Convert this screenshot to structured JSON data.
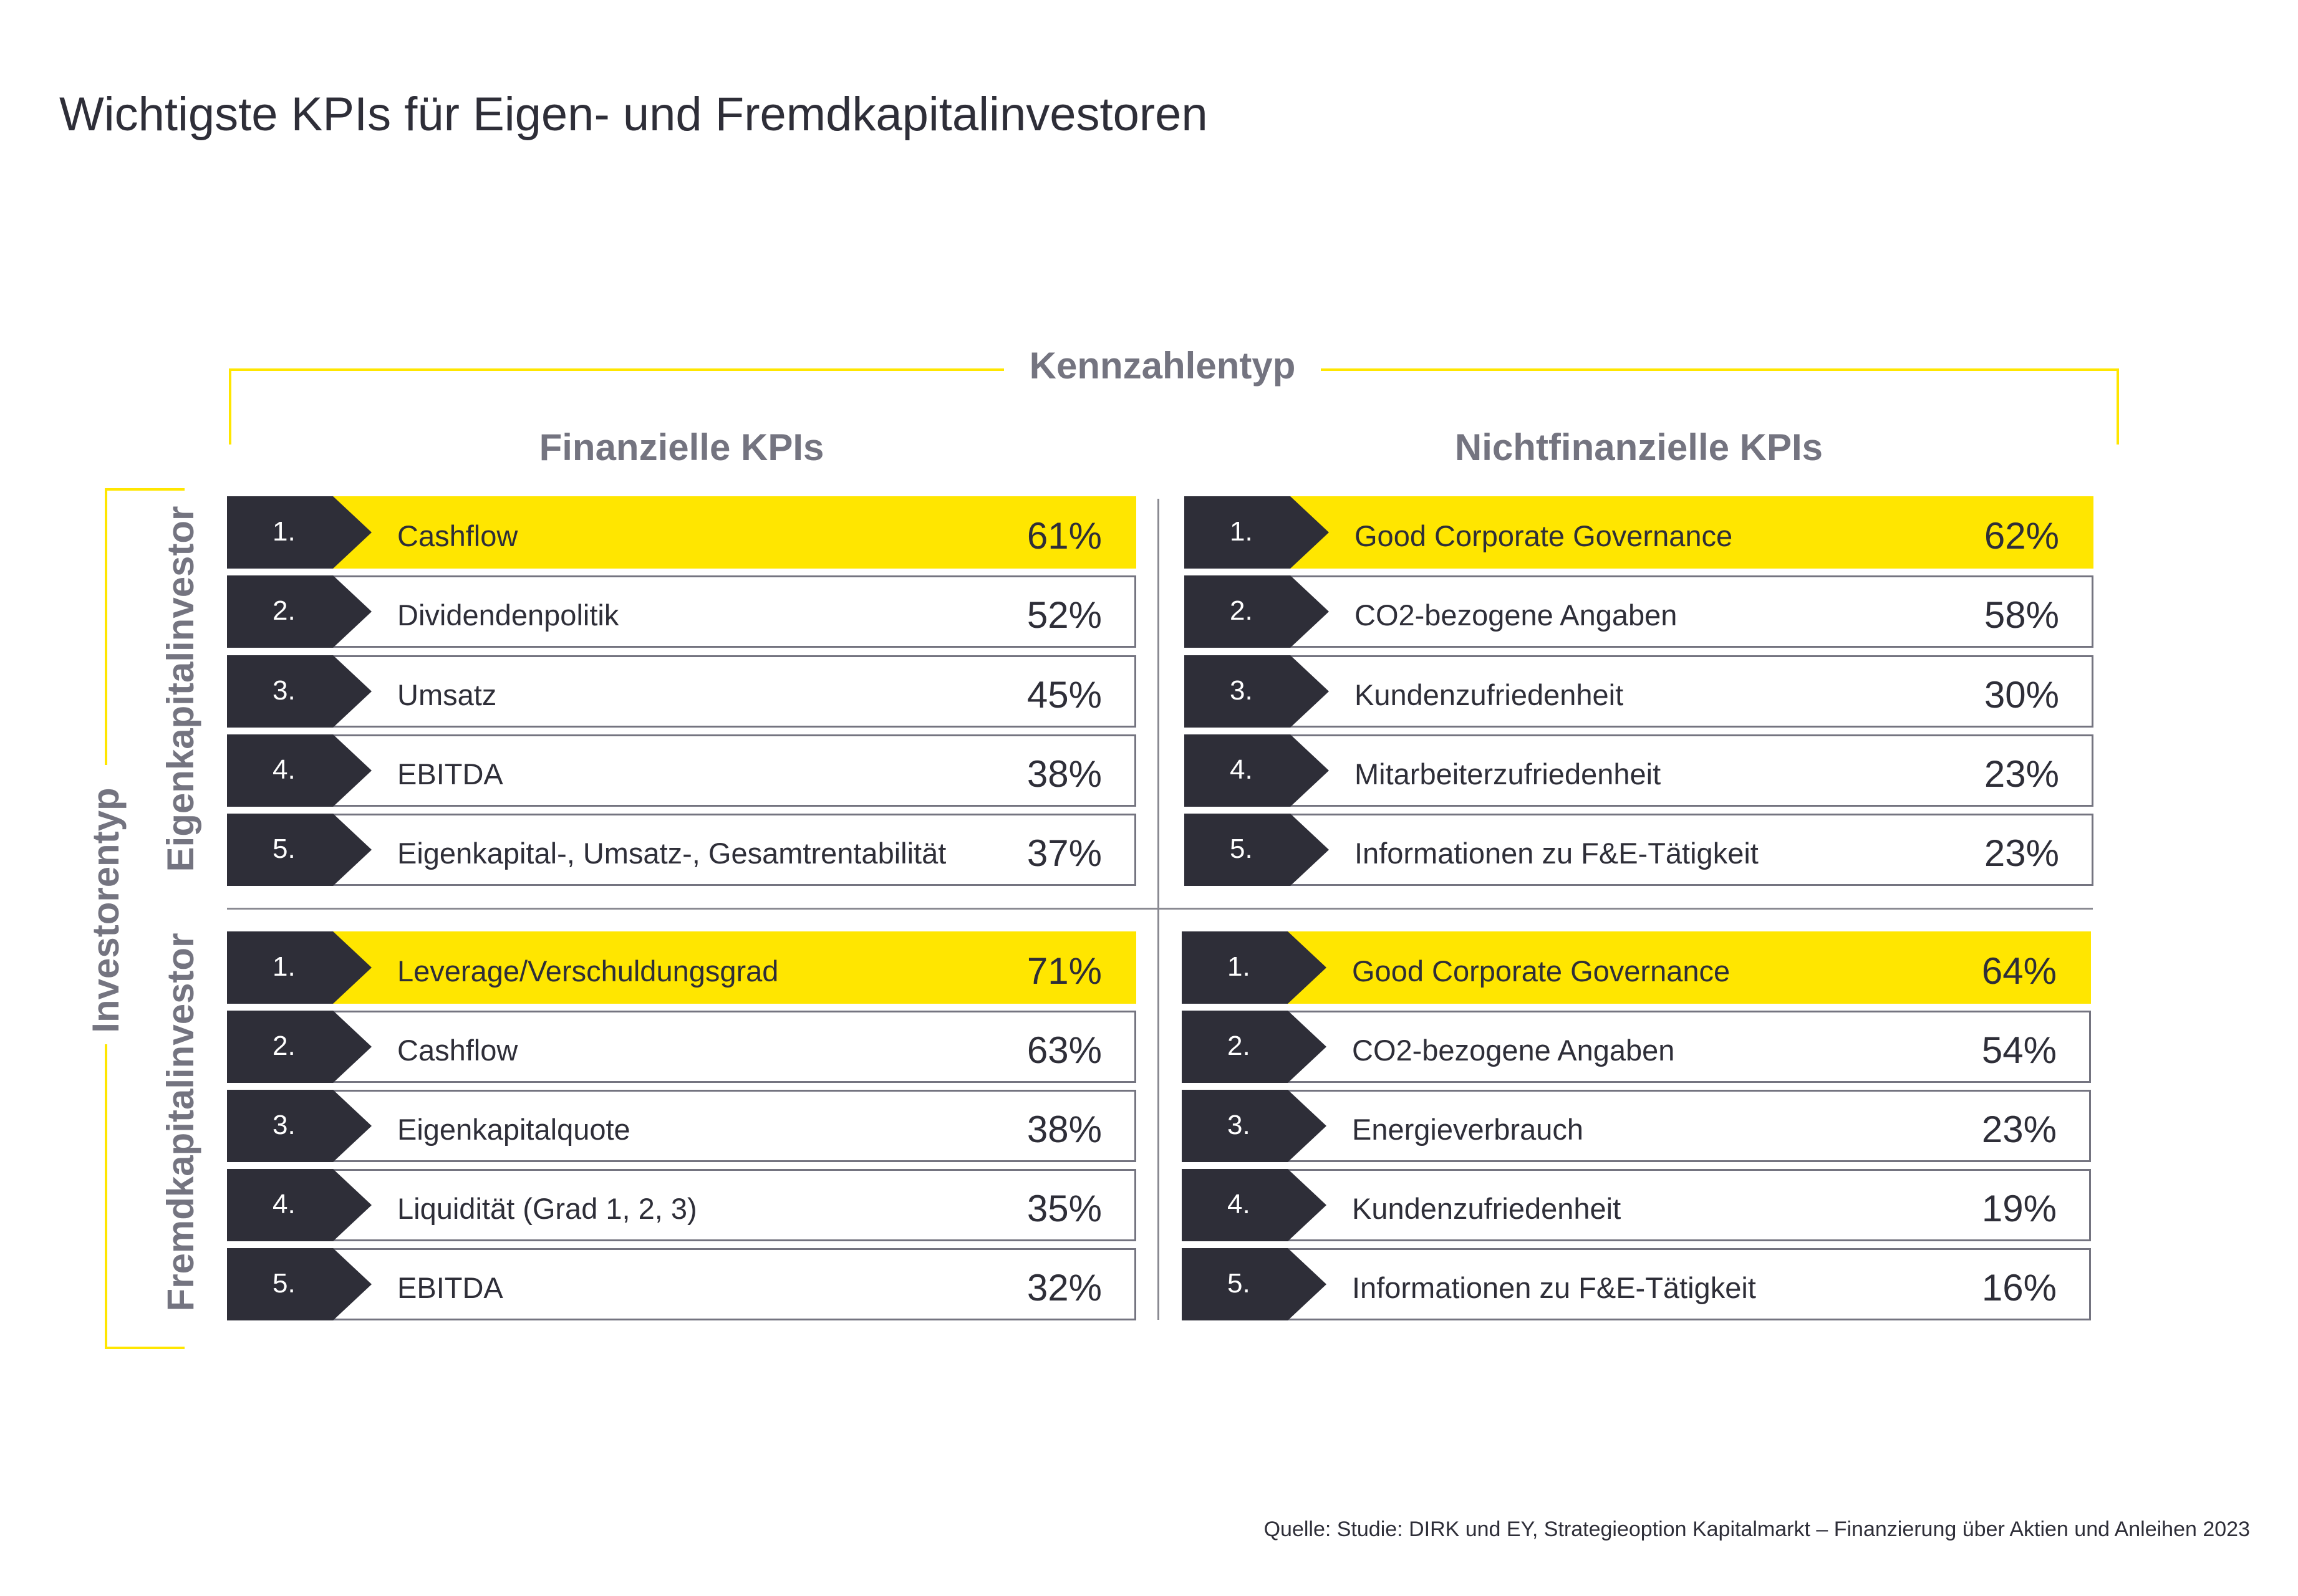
{
  "title": "Wichtigste KPIs für Eigen- und Fremdkapitalinvestoren",
  "column_type_label": "Kennzahlentyp",
  "row_type_label": "Investorentyp",
  "columns": [
    "Finanzielle KPIs",
    "Nichtfinanzielle KPIs"
  ],
  "groups": [
    "Eigenkapitalinvestor",
    "Fremdkapitalinvestor"
  ],
  "colors": {
    "highlight": "#ffe600",
    "dark": "#2e2e38",
    "gray": "#747480"
  },
  "eq_fin": [
    {
      "rank": "1.",
      "label": "Cashflow",
      "value": "61%"
    },
    {
      "rank": "2.",
      "label": "Dividendenpolitik",
      "value": "52%"
    },
    {
      "rank": "3.",
      "label": "Umsatz",
      "value": "45%"
    },
    {
      "rank": "4.",
      "label": "EBITDA",
      "value": "38%"
    },
    {
      "rank": "5.",
      "label": "Eigenkapital-, Umsatz-, Gesamtrentabilität",
      "value": "37%"
    }
  ],
  "eq_nonfin": [
    {
      "rank": "1.",
      "label": "Good Corporate Governance",
      "value": "62%"
    },
    {
      "rank": "2.",
      "label": "CO2-bezogene Angaben",
      "value": "58%"
    },
    {
      "rank": "3.",
      "label": "Kundenzufriedenheit",
      "value": "30%"
    },
    {
      "rank": "4.",
      "label": "Mitarbeiterzufriedenheit",
      "value": "23%"
    },
    {
      "rank": "5.",
      "label": "Informationen zu F&E-Tätigkeit",
      "value": "23%"
    }
  ],
  "debt_fin": [
    {
      "rank": "1.",
      "label": "Leverage/Verschuldungsgrad",
      "value": "71%"
    },
    {
      "rank": "2.",
      "label": "Cashflow",
      "value": "63%"
    },
    {
      "rank": "3.",
      "label": "Eigenkapitalquote",
      "value": "38%"
    },
    {
      "rank": "4.",
      "label": "Liquidität (Grad 1, 2, 3)",
      "value": "35%"
    },
    {
      "rank": "5.",
      "label": "EBITDA",
      "value": "32%"
    }
  ],
  "debt_nonfin": [
    {
      "rank": "1.",
      "label": "Good Corporate Governance",
      "value": "64%"
    },
    {
      "rank": "2.",
      "label": "CO2-bezogene Angaben",
      "value": "54%"
    },
    {
      "rank": "3.",
      "label": "Energieverbrauch",
      "value": "23%"
    },
    {
      "rank": "4.",
      "label": "Kundenzufriedenheit",
      "value": "19%"
    },
    {
      "rank": "5.",
      "label": "Informationen zu F&E-Tätigkeit",
      "value": "16%"
    }
  ],
  "source": "Quelle: Studie: DIRK und EY, Strategieoption Kapitalmarkt – Finanzierung über Aktien und Anleihen 2023"
}
